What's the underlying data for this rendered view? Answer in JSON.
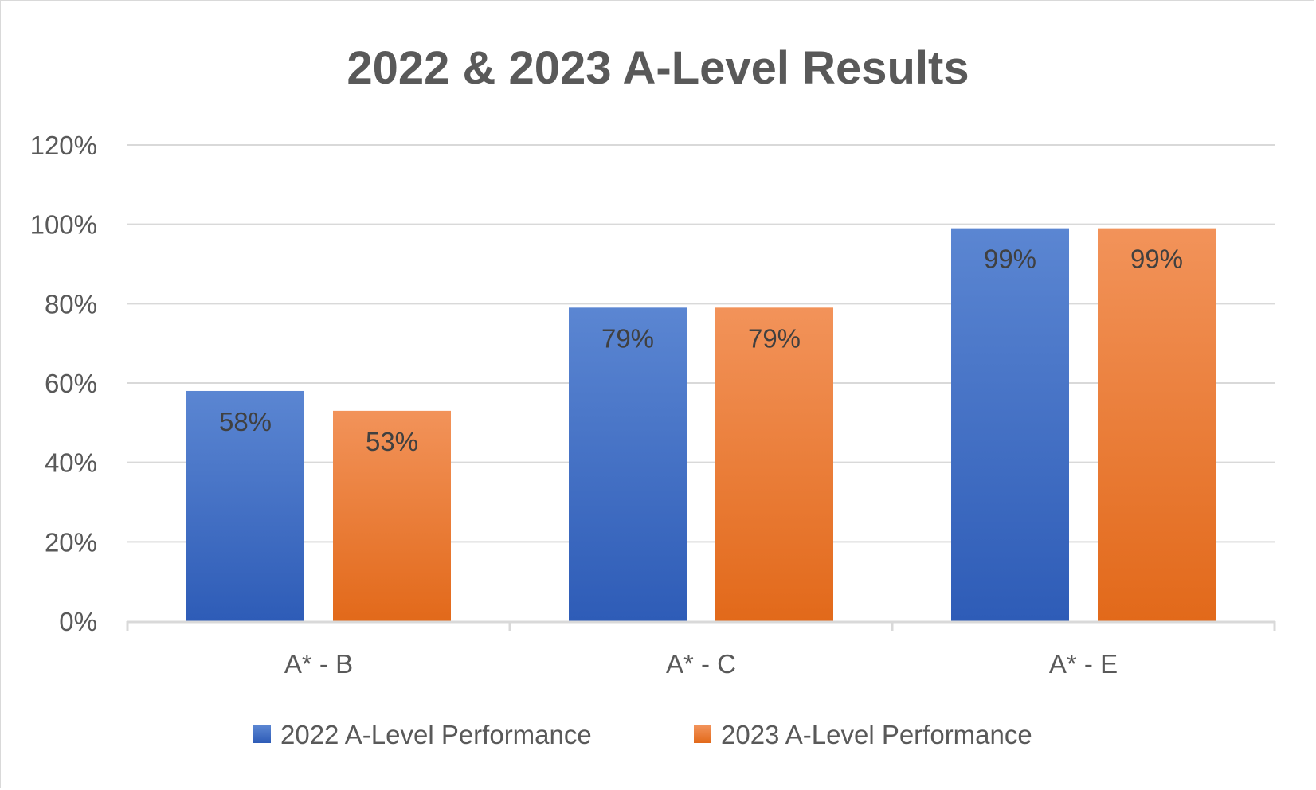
{
  "chart_data": {
    "type": "bar",
    "title": "2022 & 2023 A-Level Results",
    "categories": [
      "A* - B",
      "A* - C",
      "A* - E"
    ],
    "series": [
      {
        "name": "2022 A-Level Performance",
        "values": [
          58,
          79,
          99
        ],
        "labels": [
          "58%",
          "79%",
          "99%"
        ],
        "color": "#4472C4"
      },
      {
        "name": "2023 A-Level Performance",
        "values": [
          53,
          79,
          99
        ],
        "labels": [
          "53%",
          "79%",
          "99%"
        ],
        "color": "#ED7D31"
      }
    ],
    "y_ticks": [
      "0%",
      "20%",
      "40%",
      "60%",
      "80%",
      "100%",
      "120%"
    ],
    "ylim": [
      0,
      120
    ],
    "grid": true,
    "legend_position": "bottom"
  }
}
